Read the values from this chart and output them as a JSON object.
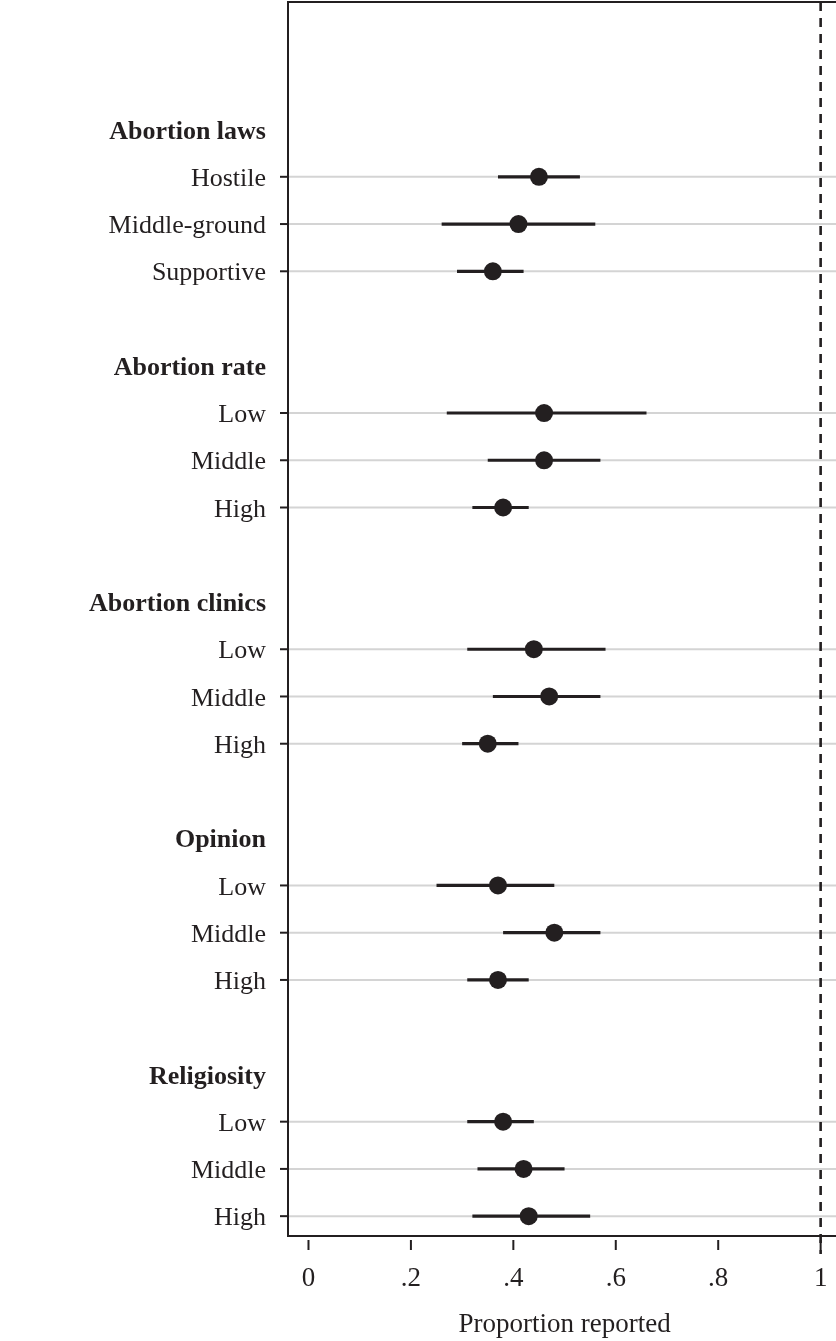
{
  "chart_data": {
    "type": "scatter",
    "orientation": "horizontal",
    "xlabel": "Proportion reported",
    "categories": [
      "Abortion laws",
      "Hostile",
      "Middle-ground",
      "Supportive",
      null,
      "Abortion rate",
      "Low",
      "Middle",
      "High",
      null,
      "Abortion clinics",
      "Low",
      "Middle",
      "High",
      null,
      "Opinion",
      "Low",
      "Middle",
      "High",
      null,
      "Religiosity",
      "Low",
      "Middle",
      "High"
    ],
    "series": [
      {
        "color": "#231f20",
        "values": [
          null,
          0.45,
          0.41,
          0.36,
          null,
          null,
          0.46,
          0.46,
          0.38,
          null,
          null,
          0.44,
          0.47,
          0.35,
          null,
          null,
          0.37,
          0.48,
          0.37,
          null,
          null,
          0.38,
          0.42,
          0.43
        ],
        "errors": [
          null,
          [
            0.37,
            0.53
          ],
          [
            0.26,
            0.56
          ],
          [
            0.29,
            0.42
          ],
          null,
          null,
          [
            0.27,
            0.66
          ],
          [
            0.35,
            0.57
          ],
          [
            0.32,
            0.43
          ],
          null,
          null,
          [
            0.31,
            0.58
          ],
          [
            0.36,
            0.57
          ],
          [
            0.3,
            0.41
          ],
          null,
          null,
          [
            0.25,
            0.48
          ],
          [
            0.38,
            0.57
          ],
          [
            0.31,
            0.43
          ],
          null,
          null,
          [
            0.31,
            0.44
          ],
          [
            0.33,
            0.5
          ],
          [
            0.32,
            0.55
          ]
        ]
      }
    ],
    "xlim": [
      -0.04,
      1.03
    ],
    "xticks": [
      0,
      {
        "value": 0.2,
        "label": ".2"
      },
      {
        "value": 0.4,
        "label": ".4"
      },
      {
        "value": 0.6,
        "label": ".6"
      },
      {
        "value": 0.8,
        "label": ".8"
      },
      1
    ],
    "grid": "y",
    "marker": "circle",
    "ref_lines": [
      {
        "axis": "x",
        "value": 1,
        "line_style": "dashed",
        "color": "#231f20"
      }
    ]
  }
}
